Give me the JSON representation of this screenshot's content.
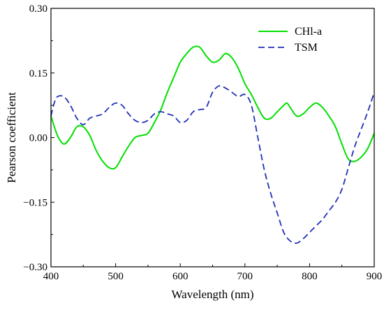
{
  "chart_data": {
    "type": "line",
    "xlabel": "Wavelength (nm)",
    "ylabel": "Pearson coefficient",
    "xlim": [
      400,
      900
    ],
    "ylim": [
      -0.3,
      0.3
    ],
    "x_ticks": [
      400,
      500,
      600,
      700,
      800,
      900
    ],
    "x_tick_labels": [
      "400",
      "500",
      "600",
      "700",
      "800",
      "900"
    ],
    "y_ticks": [
      -0.3,
      -0.15,
      0.0,
      0.15,
      0.3
    ],
    "y_tick_labels": [
      "−0.30",
      "−0.15",
      "0.00",
      "0.15",
      "0.30"
    ],
    "grid": false,
    "legend_position": "top-right",
    "series": [
      {
        "name": "CHl-a",
        "color": "#00e000",
        "style": "solid",
        "x": [
          400,
          410,
          420,
          430,
          440,
          450,
          460,
          470,
          480,
          490,
          500,
          510,
          520,
          530,
          540,
          550,
          560,
          570,
          580,
          590,
          600,
          610,
          620,
          630,
          640,
          650,
          660,
          670,
          680,
          690,
          700,
          710,
          720,
          730,
          740,
          750,
          760,
          765,
          770,
          780,
          790,
          800,
          810,
          820,
          830,
          840,
          850,
          860,
          870,
          880,
          890,
          900
        ],
        "y": [
          0.05,
          0.005,
          -0.015,
          0.0,
          0.025,
          0.025,
          0.005,
          -0.03,
          -0.055,
          -0.07,
          -0.07,
          -0.045,
          -0.02,
          0.0,
          0.005,
          0.01,
          0.035,
          0.065,
          0.105,
          0.14,
          0.175,
          0.195,
          0.21,
          0.21,
          0.19,
          0.175,
          0.18,
          0.195,
          0.185,
          0.16,
          0.125,
          0.1,
          0.07,
          0.045,
          0.045,
          0.06,
          0.075,
          0.08,
          0.07,
          0.05,
          0.055,
          0.07,
          0.08,
          0.07,
          0.05,
          0.025,
          -0.015,
          -0.05,
          -0.055,
          -0.045,
          -0.025,
          0.01
        ]
      },
      {
        "name": "TSM",
        "color": "#1f2fb8",
        "style": "dashed",
        "x": [
          400,
          405,
          410,
          420,
          430,
          440,
          450,
          460,
          470,
          480,
          490,
          500,
          510,
          520,
          530,
          540,
          550,
          560,
          570,
          580,
          590,
          600,
          610,
          620,
          630,
          640,
          650,
          660,
          670,
          680,
          690,
          700,
          710,
          720,
          730,
          740,
          750,
          760,
          770,
          780,
          790,
          800,
          810,
          820,
          830,
          840,
          850,
          860,
          870,
          880,
          890,
          900
        ],
        "y": [
          0.05,
          0.08,
          0.095,
          0.095,
          0.075,
          0.045,
          0.03,
          0.045,
          0.05,
          0.055,
          0.07,
          0.08,
          0.075,
          0.055,
          0.04,
          0.035,
          0.04,
          0.055,
          0.06,
          0.055,
          0.05,
          0.035,
          0.04,
          0.06,
          0.065,
          0.07,
          0.105,
          0.12,
          0.115,
          0.105,
          0.095,
          0.1,
          0.075,
          0.0,
          -0.075,
          -0.13,
          -0.175,
          -0.22,
          -0.24,
          -0.245,
          -0.235,
          -0.22,
          -0.205,
          -0.19,
          -0.17,
          -0.15,
          -0.12,
          -0.07,
          -0.02,
          0.02,
          0.06,
          0.105
        ]
      }
    ]
  }
}
